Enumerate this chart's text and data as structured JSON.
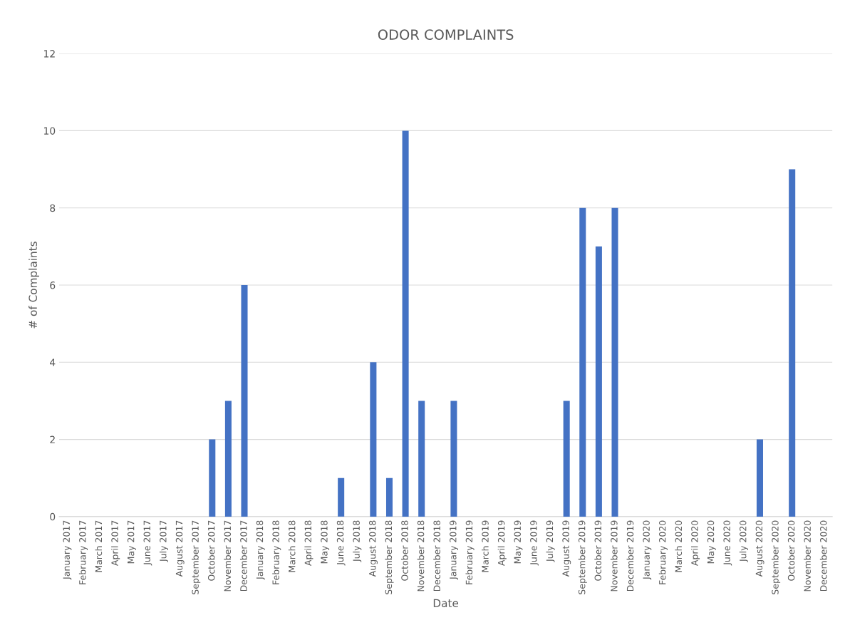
{
  "chart_data": {
    "type": "bar",
    "title": "ODOR COMPLAINTS",
    "xlabel": "Date",
    "ylabel": "# of Complaints",
    "categories": [
      "January 2017",
      "February 2017",
      "March 2017",
      "April 2017",
      "May 2017",
      "June 2017",
      "July 2017",
      "August 2017",
      "September 2017",
      "October 2017",
      "November 2017",
      "December 2017",
      "January 2018",
      "February 2018",
      "March 2018",
      "April 2018",
      "May 2018",
      "June 2018",
      "July 2018",
      "August 2018",
      "September 2018",
      "October 2018",
      "November 2018",
      "December 2018",
      "January 2019",
      "February 2019",
      "March 2019",
      "April 2019",
      "May 2019",
      "June 2019",
      "July 2019",
      "August 2019",
      "September 2019",
      "October 2019",
      "November 2019",
      "December 2019",
      "January 2020",
      "February 2020",
      "March 2020",
      "April 2020",
      "May 2020",
      "June 2020",
      "July 2020",
      "August 2020",
      "September 2020",
      "October 2020",
      "November 2020",
      "December 2020"
    ],
    "values": [
      0,
      0,
      0,
      0,
      0,
      0,
      0,
      0,
      0,
      2,
      3,
      6,
      0,
      0,
      0,
      0,
      0,
      1,
      0,
      4,
      1,
      10,
      3,
      0,
      3,
      0,
      0,
      0,
      0,
      0,
      0,
      3,
      8,
      7,
      8,
      0,
      0,
      0,
      0,
      0,
      0,
      0,
      0,
      2,
      0,
      9,
      0,
      0
    ],
    "color": "#4472c4",
    "ylim": [
      0,
      12
    ],
    "yticks": [
      0,
      2,
      4,
      6,
      8,
      10,
      12
    ],
    "grid": "y",
    "legend": false
  }
}
